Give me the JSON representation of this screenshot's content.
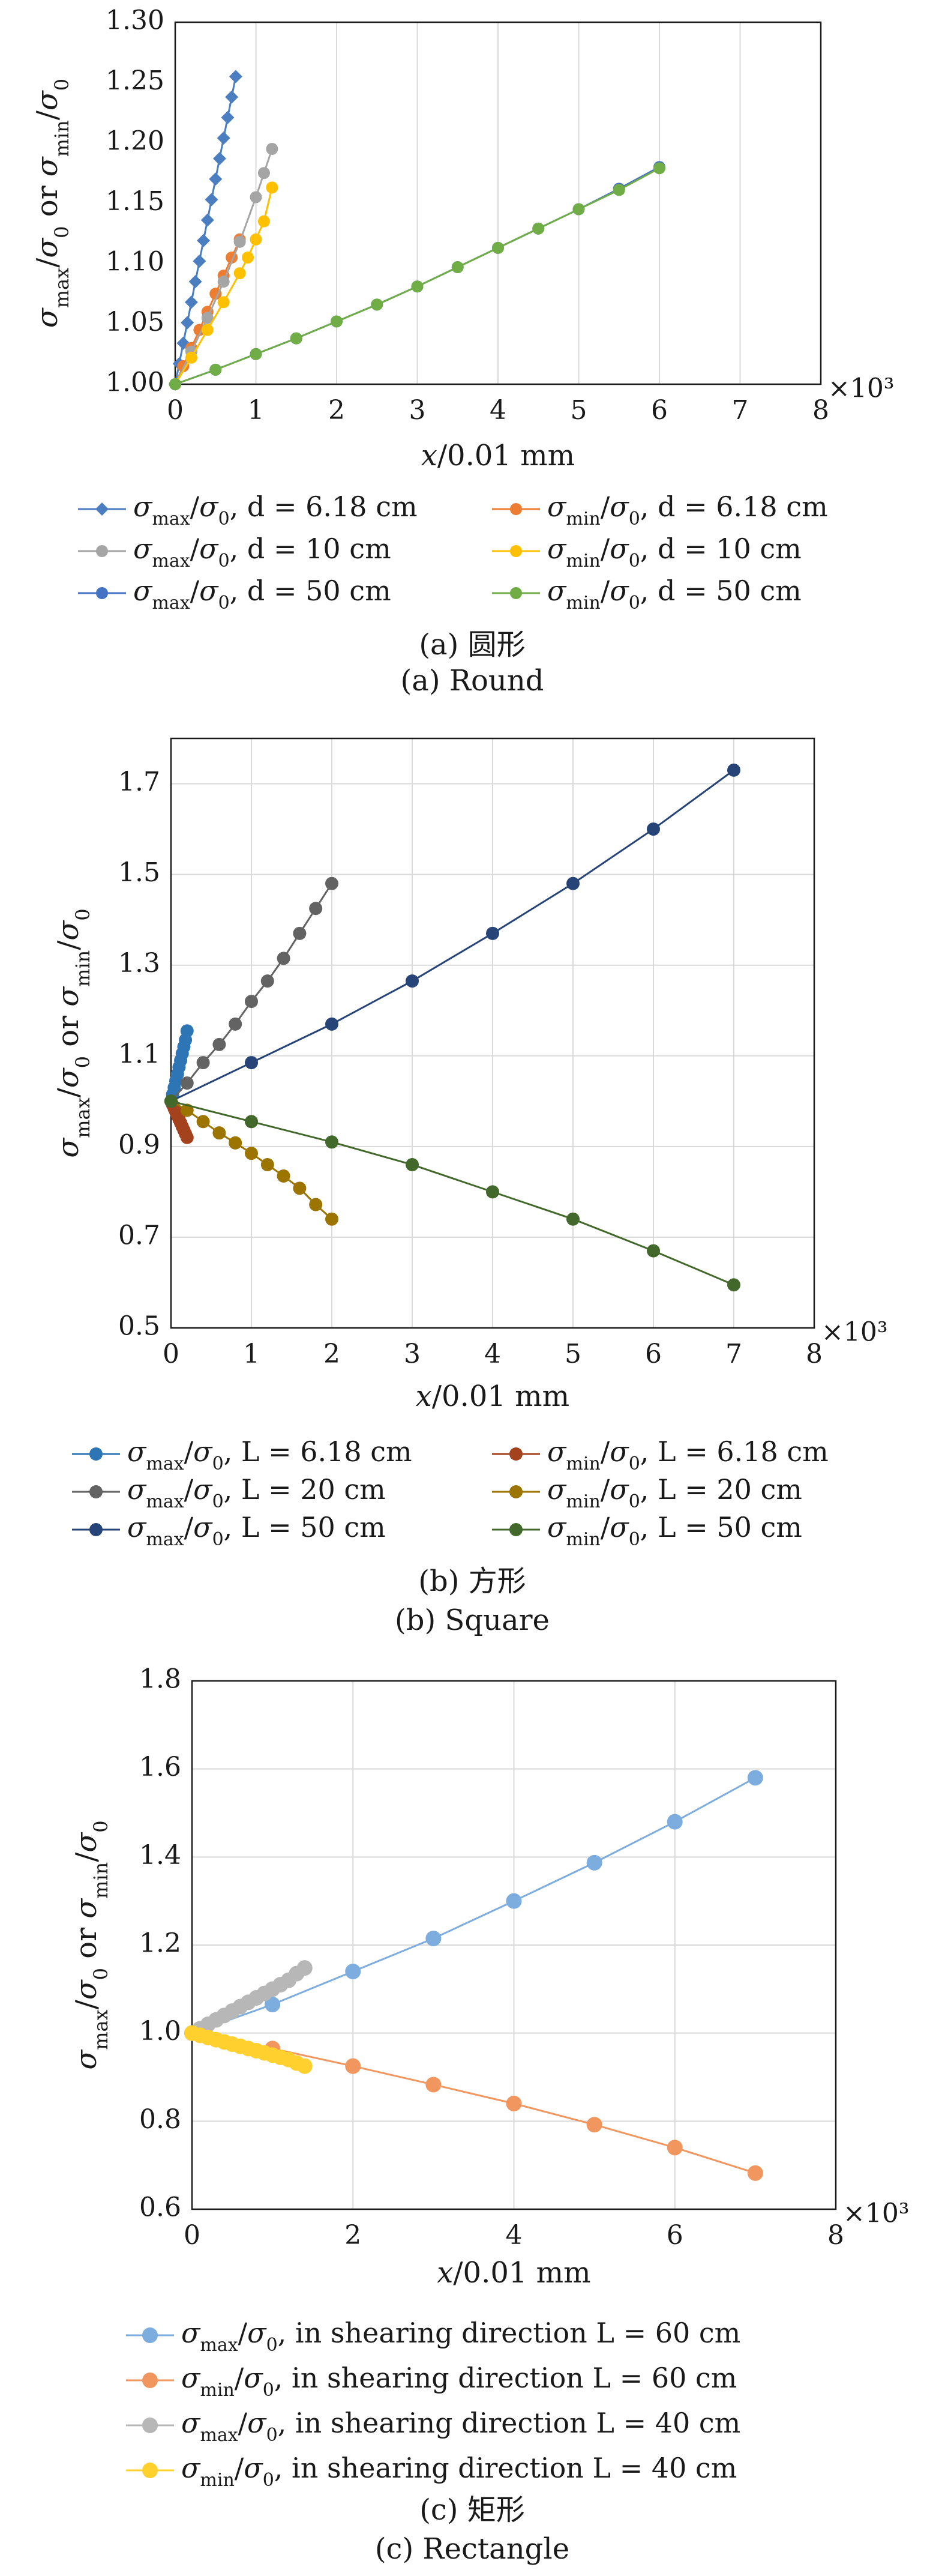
{
  "chart_data": [
    {
      "id": "a",
      "type": "line",
      "x_label": "x/0.01 mm",
      "y_label": "σmax/σ0 or σmin/σ0",
      "x_multiplier": "×10³",
      "xlim": [
        0,
        8
      ],
      "ylim": [
        1.0,
        1.3
      ],
      "x_ticks": [
        0,
        1,
        2,
        3,
        4,
        5,
        6,
        7,
        8
      ],
      "y_ticks": [
        "1.00",
        "1.05",
        "1.10",
        "1.15",
        "1.20",
        "1.25",
        "1.30"
      ],
      "grid": "vertical",
      "legend_position": "below",
      "series": [
        {
          "name": "σmax/σ0, d = 6.18 cm",
          "color": "#4a7ec0",
          "marker": "diamond",
          "x": [
            0,
            0.05,
            0.1,
            0.15,
            0.2,
            0.25,
            0.3,
            0.35,
            0.4,
            0.45,
            0.5,
            0.55,
            0.6,
            0.65,
            0.7,
            0.75
          ],
          "y": [
            1.0,
            1.017,
            1.034,
            1.051,
            1.068,
            1.085,
            1.102,
            1.119,
            1.136,
            1.153,
            1.17,
            1.187,
            1.204,
            1.221,
            1.238,
            1.255
          ]
        },
        {
          "name": "σmin/σ0, d = 6.18 cm",
          "color": "#ed7d31",
          "marker": "circle",
          "x": [
            0,
            0.1,
            0.2,
            0.3,
            0.4,
            0.5,
            0.6,
            0.7,
            0.8
          ],
          "y": [
            1.0,
            1.015,
            1.03,
            1.045,
            1.06,
            1.075,
            1.09,
            1.105,
            1.12
          ]
        },
        {
          "name": "σmax/σ0, d = 10 cm",
          "color": "#a5a5a5",
          "marker": "circle",
          "x": [
            0,
            0.2,
            0.4,
            0.6,
            0.8,
            1.0,
            1.1,
            1.2
          ],
          "y": [
            1.0,
            1.027,
            1.055,
            1.085,
            1.118,
            1.155,
            1.175,
            1.195
          ]
        },
        {
          "name": "σmin/σ0, d = 10 cm",
          "color": "#ffc000",
          "marker": "circle",
          "x": [
            0,
            0.2,
            0.4,
            0.6,
            0.8,
            0.9,
            1.0,
            1.1,
            1.2
          ],
          "y": [
            1.0,
            1.022,
            1.045,
            1.068,
            1.092,
            1.105,
            1.12,
            1.135,
            1.163
          ]
        },
        {
          "name": "σmax/σ0, d = 50 cm",
          "color": "#4472c4",
          "marker": "circle",
          "x": [
            0,
            0.5,
            1.0,
            1.5,
            2.0,
            2.5,
            3.0,
            3.5,
            4.0,
            4.5,
            5.0,
            5.5,
            6.0
          ],
          "y": [
            1.0,
            1.012,
            1.025,
            1.038,
            1.052,
            1.066,
            1.081,
            1.097,
            1.113,
            1.129,
            1.145,
            1.162,
            1.18
          ]
        },
        {
          "name": "σmin/σ0, d = 50 cm",
          "color": "#70ad47",
          "marker": "circle",
          "x": [
            0,
            0.5,
            1.0,
            1.5,
            2.0,
            2.5,
            3.0,
            3.5,
            4.0,
            4.5,
            5.0,
            5.5,
            6.0
          ],
          "y": [
            1.0,
            1.012,
            1.025,
            1.038,
            1.052,
            1.066,
            1.081,
            1.097,
            1.113,
            1.129,
            1.145,
            1.161,
            1.179
          ]
        }
      ],
      "caption_cn": "(a) 圆形",
      "caption_en": "(a) Round"
    },
    {
      "id": "b",
      "type": "line",
      "x_label": "x/0.01 mm",
      "y_label": "σmax/σ0 or σmin/σ0",
      "x_multiplier": "×10³",
      "xlim": [
        0,
        8
      ],
      "ylim": [
        0.5,
        1.8
      ],
      "x_ticks": [
        0,
        1,
        2,
        3,
        4,
        5,
        6,
        7,
        8
      ],
      "y_ticks": [
        "0.5",
        "0.7",
        "0.9",
        "1.1",
        "1.3",
        "1.5",
        "1.7"
      ],
      "grid": "both",
      "legend_position": "below",
      "series": [
        {
          "name": "σmax/σ0, L = 6.18 cm",
          "color": "#2e75b6",
          "marker": "circle",
          "x": [
            0,
            0.02,
            0.04,
            0.06,
            0.08,
            0.1,
            0.12,
            0.14,
            0.16,
            0.18,
            0.2
          ],
          "y": [
            1.0,
            1.015,
            1.03,
            1.045,
            1.06,
            1.075,
            1.09,
            1.105,
            1.12,
            1.135,
            1.155
          ]
        },
        {
          "name": "σmin/σ0, L = 6.18 cm",
          "color": "#a5421e",
          "marker": "circle",
          "x": [
            0,
            0.02,
            0.04,
            0.06,
            0.08,
            0.1,
            0.12,
            0.14,
            0.16,
            0.18,
            0.2
          ],
          "y": [
            1.0,
            0.992,
            0.984,
            0.976,
            0.968,
            0.96,
            0.952,
            0.944,
            0.936,
            0.928,
            0.92
          ]
        },
        {
          "name": "σmax/σ0, L = 20 cm",
          "color": "#636363",
          "marker": "circle",
          "x": [
            0,
            0.2,
            0.4,
            0.6,
            0.8,
            1.0,
            1.2,
            1.4,
            1.6,
            1.8,
            2.0
          ],
          "y": [
            1.0,
            1.04,
            1.085,
            1.125,
            1.17,
            1.22,
            1.265,
            1.315,
            1.37,
            1.425,
            1.48
          ]
        },
        {
          "name": "σmin/σ0, L = 20 cm",
          "color": "#9c7400",
          "marker": "circle",
          "x": [
            0,
            0.2,
            0.4,
            0.6,
            0.8,
            1.0,
            1.2,
            1.4,
            1.6,
            1.8,
            2.0
          ],
          "y": [
            1.0,
            0.98,
            0.955,
            0.93,
            0.908,
            0.885,
            0.86,
            0.835,
            0.808,
            0.772,
            0.74
          ]
        },
        {
          "name": "σmax/σ0, L = 50 cm",
          "color": "#264478",
          "marker": "circle",
          "x": [
            0,
            1,
            2,
            3,
            4,
            5,
            6,
            7
          ],
          "y": [
            1.0,
            1.085,
            1.17,
            1.265,
            1.37,
            1.48,
            1.6,
            1.73
          ]
        },
        {
          "name": "σmin/σ0, L = 50 cm",
          "color": "#43682b",
          "marker": "circle",
          "x": [
            0,
            1,
            2,
            3,
            4,
            5,
            6,
            7
          ],
          "y": [
            1.0,
            0.955,
            0.91,
            0.86,
            0.8,
            0.74,
            0.67,
            0.595
          ]
        }
      ],
      "caption_cn": "(b) 方形",
      "caption_en": "(b) Square"
    },
    {
      "id": "c",
      "type": "line",
      "x_label": "x/0.01 mm",
      "y_label": "σmax/σ0 or σmin/σ0",
      "x_multiplier": "×10³",
      "xlim": [
        0,
        8
      ],
      "ylim": [
        0.6,
        1.8
      ],
      "x_ticks": [
        0,
        2,
        4,
        6,
        8
      ],
      "y_ticks": [
        "0.6",
        "0.8",
        "1.0",
        "1.2",
        "1.4",
        "1.6",
        "1.8"
      ],
      "grid": "both",
      "legend_position": "below",
      "series": [
        {
          "name": "σmax/σ0, in shearing direction L = 60 cm",
          "color": "#7cadde",
          "marker": "circle",
          "x": [
            0,
            1,
            2,
            3,
            4,
            5,
            6,
            7
          ],
          "y": [
            1.0,
            1.065,
            1.14,
            1.215,
            1.3,
            1.387,
            1.48,
            1.58
          ]
        },
        {
          "name": "σmin/σ0, in shearing direction L = 60 cm",
          "color": "#f0965e",
          "marker": "circle",
          "x": [
            0,
            1,
            2,
            3,
            4,
            5,
            6,
            7
          ],
          "y": [
            1.0,
            0.965,
            0.925,
            0.883,
            0.84,
            0.792,
            0.74,
            0.682
          ]
        },
        {
          "name": "σmax/σ0, in shearing direction L = 40 cm",
          "color": "#b7b7b7",
          "marker": "circle",
          "x": [
            0,
            0.1,
            0.2,
            0.3,
            0.4,
            0.5,
            0.6,
            0.7,
            0.8,
            0.9,
            1.0,
            1.1,
            1.2,
            1.3,
            1.4
          ],
          "y": [
            1.0,
            1.01,
            1.02,
            1.03,
            1.04,
            1.05,
            1.06,
            1.07,
            1.08,
            1.09,
            1.1,
            1.11,
            1.12,
            1.135,
            1.148
          ]
        },
        {
          "name": "σmin/σ0, in shearing direction L = 40 cm",
          "color": "#ffd02e",
          "marker": "circle",
          "x": [
            0,
            0.1,
            0.2,
            0.3,
            0.4,
            0.5,
            0.6,
            0.7,
            0.8,
            0.9,
            1.0,
            1.1,
            1.2,
            1.3,
            1.4
          ],
          "y": [
            1.0,
            0.995,
            0.99,
            0.985,
            0.98,
            0.975,
            0.97,
            0.965,
            0.96,
            0.955,
            0.95,
            0.945,
            0.94,
            0.932,
            0.925
          ]
        }
      ],
      "caption_cn": "(c) 矩形",
      "caption_en": "(c) Rectangle"
    }
  ]
}
